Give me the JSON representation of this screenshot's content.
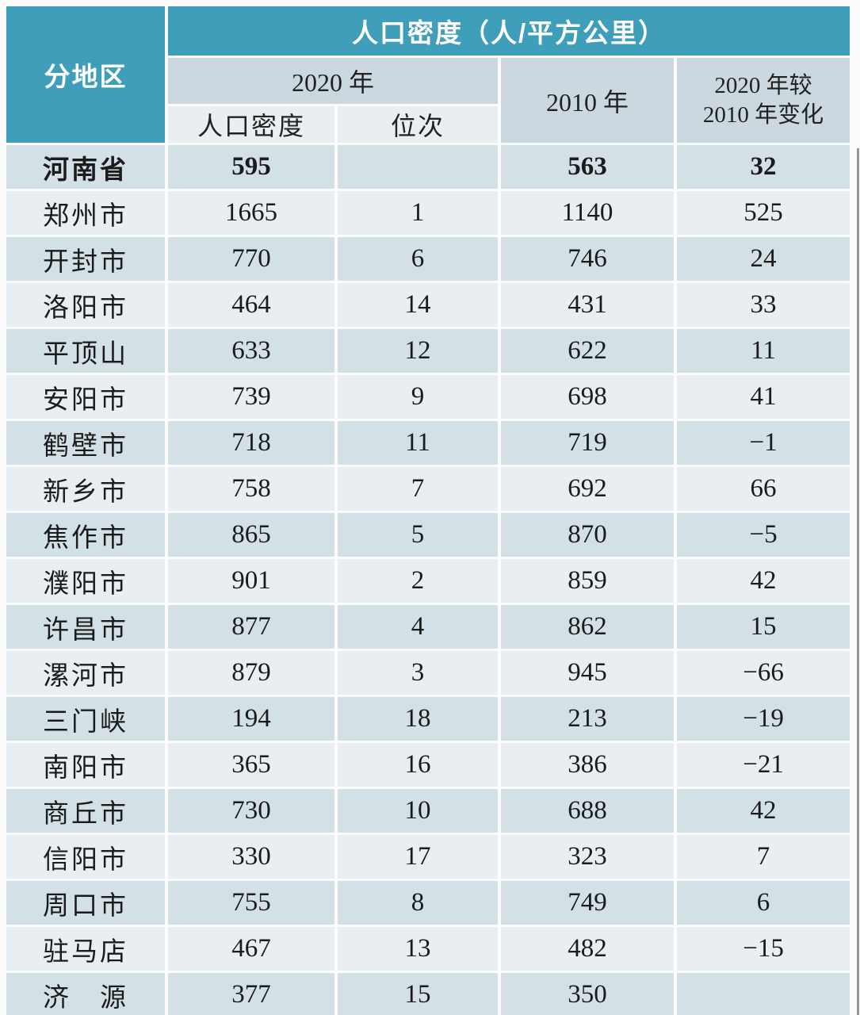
{
  "header": {
    "region_col": "分地区",
    "density_title": "人口密度（人/平方公里）",
    "year_2020": "2020 年",
    "year_2010": "2010 年",
    "change_line1": "2020 年较",
    "change_line2": "2010 年变化",
    "sub_density": "人口密度",
    "sub_rank": "位次"
  },
  "colors": {
    "teal": "#3f9fbb",
    "band": "#ccd8df",
    "subheader": "#e9eef1",
    "row_dark": "#d3e0e6",
    "row_light": "#e9eef3",
    "header_text": "#ffffff",
    "body_text": "#1b1b1b"
  },
  "chart_data": {
    "type": "table",
    "title": "人口密度（人/平方公里）",
    "columns": [
      "分地区",
      "2020 年 人口密度",
      "2020 年 位次",
      "2010 年",
      "2020 年较 2010 年变化"
    ],
    "rows": [
      {
        "region": "河南省",
        "density_2020": "595",
        "rank_2020": "",
        "density_2010": "563",
        "change": "32",
        "emphasis": true
      },
      {
        "region": "郑州市",
        "density_2020": "1665",
        "rank_2020": "1",
        "density_2010": "1140",
        "change": "525",
        "emphasis": false
      },
      {
        "region": "开封市",
        "density_2020": "770",
        "rank_2020": "6",
        "density_2010": "746",
        "change": "24",
        "emphasis": false
      },
      {
        "region": "洛阳市",
        "density_2020": "464",
        "rank_2020": "14",
        "density_2010": "431",
        "change": "33",
        "emphasis": false
      },
      {
        "region": "平顶山",
        "density_2020": "633",
        "rank_2020": "12",
        "density_2010": "622",
        "change": "11",
        "emphasis": false
      },
      {
        "region": "安阳市",
        "density_2020": "739",
        "rank_2020": "9",
        "density_2010": "698",
        "change": "41",
        "emphasis": false
      },
      {
        "region": "鹤壁市",
        "density_2020": "718",
        "rank_2020": "11",
        "density_2010": "719",
        "change": "−1",
        "emphasis": false
      },
      {
        "region": "新乡市",
        "density_2020": "758",
        "rank_2020": "7",
        "density_2010": "692",
        "change": "66",
        "emphasis": false
      },
      {
        "region": "焦作市",
        "density_2020": "865",
        "rank_2020": "5",
        "density_2010": "870",
        "change": "−5",
        "emphasis": false
      },
      {
        "region": "濮阳市",
        "density_2020": "901",
        "rank_2020": "2",
        "density_2010": "859",
        "change": "42",
        "emphasis": false
      },
      {
        "region": "许昌市",
        "density_2020": "877",
        "rank_2020": "4",
        "density_2010": "862",
        "change": "15",
        "emphasis": false
      },
      {
        "region": "漯河市",
        "density_2020": "879",
        "rank_2020": "3",
        "density_2010": "945",
        "change": "−66",
        "emphasis": false
      },
      {
        "region": "三门峡",
        "density_2020": "194",
        "rank_2020": "18",
        "density_2010": "213",
        "change": "−19",
        "emphasis": false
      },
      {
        "region": "南阳市",
        "density_2020": "365",
        "rank_2020": "16",
        "density_2010": "386",
        "change": "−21",
        "emphasis": false
      },
      {
        "region": "商丘市",
        "density_2020": "730",
        "rank_2020": "10",
        "density_2010": "688",
        "change": "42",
        "emphasis": false
      },
      {
        "region": "信阳市",
        "density_2020": "330",
        "rank_2020": "17",
        "density_2010": "323",
        "change": "7",
        "emphasis": false
      },
      {
        "region": "周口市",
        "density_2020": "755",
        "rank_2020": "8",
        "density_2010": "749",
        "change": "6",
        "emphasis": false
      },
      {
        "region": "驻马店",
        "density_2020": "467",
        "rank_2020": "13",
        "density_2010": "482",
        "change": "−15",
        "emphasis": false
      },
      {
        "region": "济　源",
        "density_2020": "377",
        "rank_2020": "15",
        "density_2010": "350",
        "change": "",
        "emphasis": false
      }
    ]
  }
}
